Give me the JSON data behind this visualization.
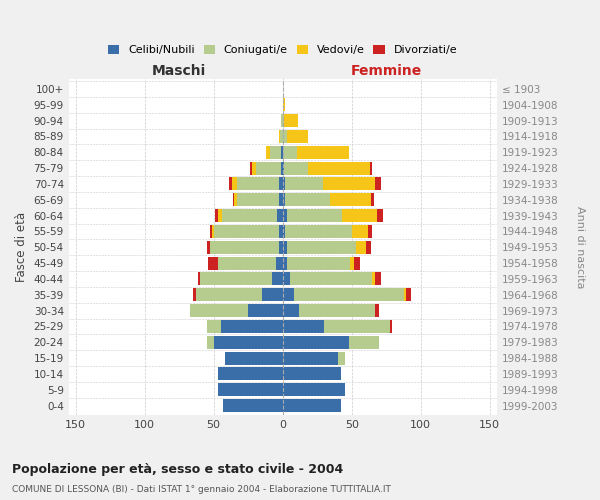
{
  "age_groups": [
    "0-4",
    "5-9",
    "10-14",
    "15-19",
    "20-24",
    "25-29",
    "30-34",
    "35-39",
    "40-44",
    "45-49",
    "50-54",
    "55-59",
    "60-64",
    "65-69",
    "70-74",
    "75-79",
    "80-84",
    "85-89",
    "90-94",
    "95-99",
    "100+"
  ],
  "birth_years": [
    "1999-2003",
    "1994-1998",
    "1989-1993",
    "1984-1988",
    "1979-1983",
    "1974-1978",
    "1969-1973",
    "1964-1968",
    "1959-1963",
    "1954-1958",
    "1949-1953",
    "1944-1948",
    "1939-1943",
    "1934-1938",
    "1929-1933",
    "1924-1928",
    "1919-1923",
    "1914-1918",
    "1909-1913",
    "1904-1908",
    "≤ 1903"
  ],
  "maschi": {
    "celibi": [
      43,
      47,
      47,
      42,
      50,
      45,
      25,
      15,
      8,
      5,
      3,
      3,
      4,
      3,
      3,
      1,
      1,
      0,
      0,
      0,
      0
    ],
    "coniugati": [
      0,
      0,
      0,
      0,
      5,
      10,
      42,
      48,
      52,
      42,
      50,
      47,
      40,
      30,
      30,
      18,
      8,
      2,
      1,
      0,
      0
    ],
    "vedovi": [
      0,
      0,
      0,
      0,
      0,
      0,
      0,
      0,
      0,
      0,
      0,
      1,
      3,
      2,
      4,
      3,
      3,
      1,
      0,
      0,
      0
    ],
    "divorziati": [
      0,
      0,
      0,
      0,
      0,
      0,
      0,
      2,
      1,
      7,
      2,
      2,
      2,
      1,
      2,
      2,
      0,
      0,
      0,
      0,
      0
    ]
  },
  "femmine": {
    "nubili": [
      42,
      45,
      42,
      40,
      48,
      30,
      12,
      8,
      5,
      3,
      3,
      2,
      3,
      2,
      2,
      1,
      0,
      0,
      0,
      0,
      0
    ],
    "coniugate": [
      0,
      0,
      0,
      5,
      22,
      48,
      55,
      80,
      60,
      46,
      50,
      48,
      40,
      32,
      27,
      17,
      10,
      3,
      1,
      0,
      0
    ],
    "vedove": [
      0,
      0,
      0,
      0,
      0,
      0,
      0,
      1,
      2,
      3,
      7,
      12,
      25,
      30,
      38,
      45,
      38,
      15,
      10,
      2,
      0
    ],
    "divorziate": [
      0,
      0,
      0,
      0,
      0,
      1,
      3,
      4,
      4,
      4,
      4,
      3,
      5,
      2,
      4,
      2,
      0,
      0,
      0,
      0,
      0
    ]
  },
  "colors": {
    "celibi_nubili": "#3a6ea8",
    "coniugati": "#b5cc8e",
    "vedovi": "#f5c518",
    "divorziati": "#cc2222"
  },
  "xlim": 155,
  "title": "Popolazione per età, sesso e stato civile - 2004",
  "subtitle": "COMUNE DI LESSONA (BI) - Dati ISTAT 1° gennaio 2004 - Elaborazione TUTTITALIA.IT",
  "ylabel": "Fasce di età",
  "ylabel_right": "Anni di nascita",
  "xlabel_left": "Maschi",
  "xlabel_right": "Femmine",
  "bg_color": "#f0f0f0",
  "plot_bg": "#ffffff"
}
